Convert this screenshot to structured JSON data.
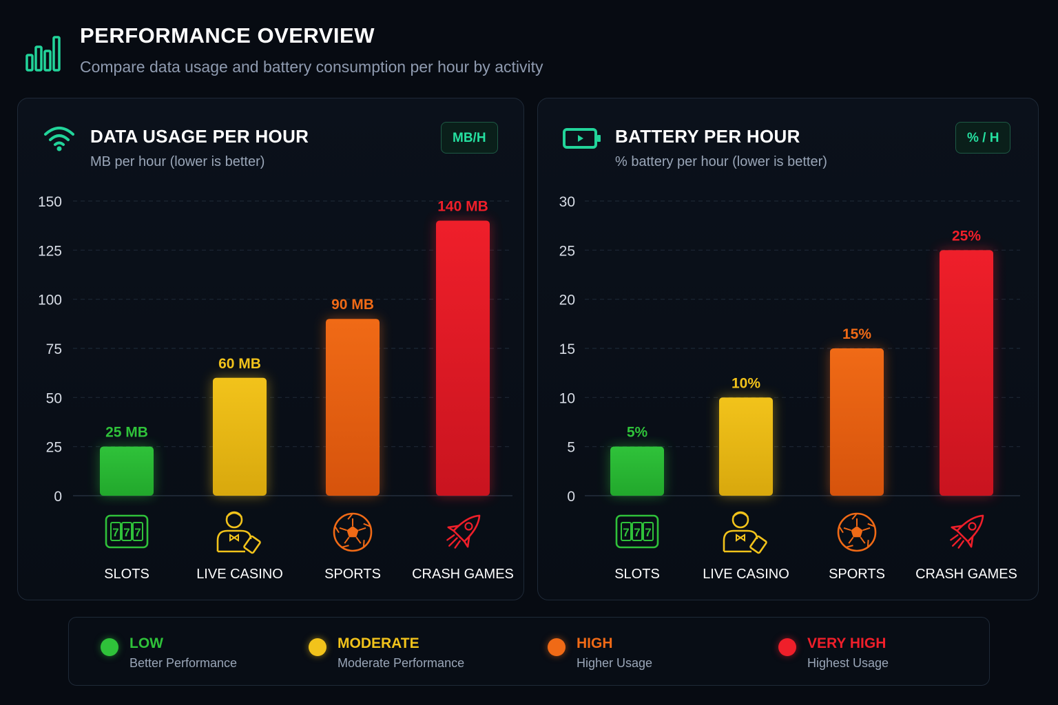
{
  "header": {
    "title": "PERFORMANCE OVERVIEW",
    "subtitle": "Compare data usage and battery consumption per hour by activity",
    "icon": "bar-chart-icon"
  },
  "categories": [
    {
      "label": "SLOTS",
      "icon": "slot-machine-icon"
    },
    {
      "label": "LIVE CASINO",
      "icon": "dealer-icon"
    },
    {
      "label": "SPORTS",
      "icon": "soccer-ball-icon"
    },
    {
      "label": "CRASH GAMES",
      "icon": "rocket-icon"
    }
  ],
  "colors": {
    "low": "#2fc23a",
    "moderate": "#f2c31b",
    "high": "#f06a16",
    "very_high": "#ef1f2a",
    "accent": "#25e0a0"
  },
  "chart_data": [
    {
      "type": "bar",
      "title": "DATA USAGE PER HOUR",
      "subtitle": "MB per hour (lower is better)",
      "unit_badge": "MB/H",
      "panel_icon": "wifi-icon",
      "categories": [
        "SLOTS",
        "LIVE CASINO",
        "SPORTS",
        "CRASH GAMES"
      ],
      "values": [
        25,
        60,
        90,
        140
      ],
      "value_labels": [
        "25 MB",
        "60 MB",
        "90 MB",
        "140 MB"
      ],
      "ylim": [
        0,
        150
      ],
      "yticks": [
        0,
        25,
        50,
        75,
        100,
        125,
        150
      ],
      "grid": true
    },
    {
      "type": "bar",
      "title": "BATTERY PER HOUR",
      "subtitle": "% battery per hour (lower is better)",
      "unit_badge": "% / H",
      "panel_icon": "battery-icon",
      "categories": [
        "SLOTS",
        "LIVE CASINO",
        "SPORTS",
        "CRASH GAMES"
      ],
      "values": [
        5,
        10,
        15,
        25
      ],
      "value_labels": [
        "5%",
        "10%",
        "15%",
        "25%"
      ],
      "ylim": [
        0,
        30
      ],
      "yticks": [
        0,
        5,
        10,
        15,
        20,
        25,
        30
      ],
      "grid": true
    }
  ],
  "legend": [
    {
      "label": "LOW",
      "desc": "Better Performance",
      "color": "#2fc23a"
    },
    {
      "label": "MODERATE",
      "desc": "Moderate Performance",
      "color": "#f2c31b"
    },
    {
      "label": "HIGH",
      "desc": "Higher Usage",
      "color": "#f06a16"
    },
    {
      "label": "VERY HIGH",
      "desc": "Highest Usage",
      "color": "#ef1f2a"
    }
  ]
}
